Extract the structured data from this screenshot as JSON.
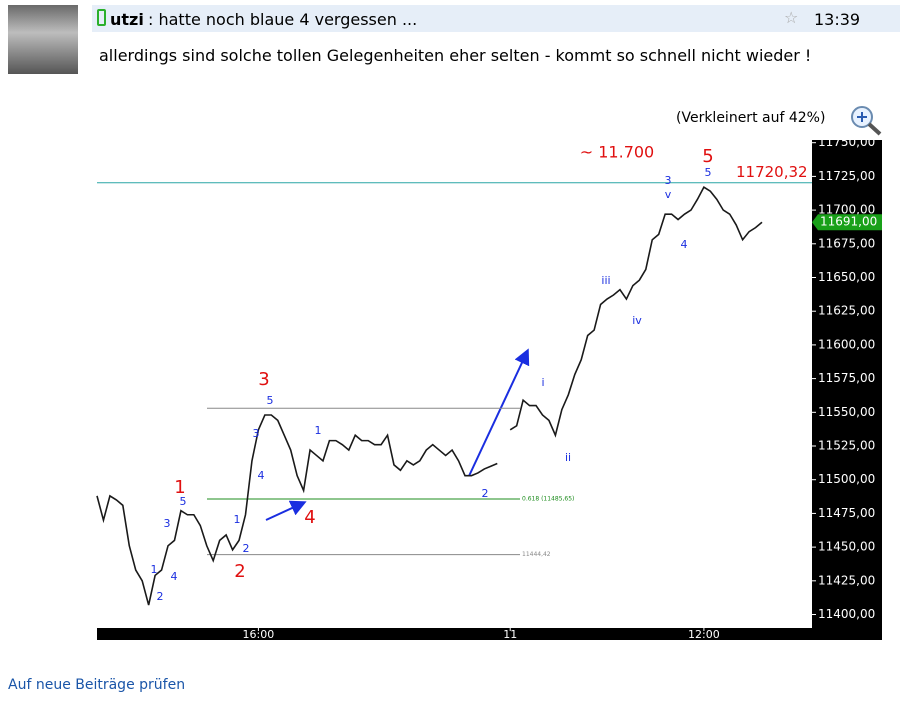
{
  "post": {
    "author": "utzi",
    "subject": ": hatte noch blaue 4 vergessen ...",
    "time": "13:39",
    "text": "allerdings sind solche tollen Gelegenheiten eher selten - kommt so schnell nicht wieder !",
    "zoom_note": "(Verkleinert auf 42%)"
  },
  "footer_link": "Auf neue Beiträge prüfen",
  "chart_data": {
    "type": "line",
    "categories": [
      null,
      null,
      null,
      null,
      null,
      null,
      null,
      null,
      null,
      null,
      null,
      null,
      null,
      null,
      null,
      null,
      null,
      null,
      null,
      null,
      null,
      null,
      null,
      null,
      null,
      "16:00",
      null,
      null,
      null,
      null,
      null,
      null,
      null,
      null,
      null,
      null,
      null,
      null,
      null,
      null,
      null,
      null,
      null,
      null,
      null,
      null,
      null,
      null,
      null,
      null,
      null,
      null,
      null,
      null,
      null,
      null,
      null,
      null,
      null,
      null,
      null,
      null,
      null,
      null,
      "11",
      null,
      null,
      null,
      null,
      null,
      null,
      null,
      null,
      null,
      null,
      null,
      null,
      null,
      null,
      null,
      null,
      null,
      null,
      null,
      null,
      null,
      null,
      null,
      null,
      null,
      null,
      null,
      null,
      null,
      "12:00",
      null,
      null,
      null,
      null,
      null,
      null,
      null,
      null,
      null
    ],
    "series": [
      {
        "color": "#1a1a1a",
        "values": [
          11488,
          11470,
          11488,
          11485,
          11481,
          11451,
          11433,
          11425,
          11407,
          11429,
          11433,
          11451,
          11455,
          11477,
          11474,
          11474,
          11466,
          11451,
          11440,
          11455,
          11459,
          11448,
          11455,
          11474,
          11514,
          11537,
          11548,
          11548,
          11544,
          11533,
          11522,
          11503,
          11492,
          11522,
          11518,
          11514,
          11529,
          11529,
          11526,
          11522,
          11533,
          11529,
          11529,
          11526,
          11526,
          11533,
          11511,
          11507,
          11514,
          11511,
          11514,
          11522,
          11526,
          11522,
          11518,
          11522,
          11514,
          11503,
          11503,
          11505,
          11508,
          11510,
          11512,
          null,
          11537,
          11540,
          11559,
          11555,
          11555,
          11548,
          11544,
          11533,
          11552,
          11563,
          11578,
          11589,
          11607,
          11611,
          11630,
          11634,
          11637,
          11641,
          11634,
          11644,
          11648,
          11656,
          11678,
          11682,
          11697,
          11697,
          11693,
          11697,
          11700,
          11708,
          11717,
          11714,
          11708,
          11700,
          11697,
          11689,
          11678,
          11684,
          11687,
          11691
        ]
      }
    ],
    "ylim": [
      11390,
      11752
    ],
    "yticks": [
      {
        "value": 11400,
        "label": "11400,00"
      },
      {
        "value": 11425,
        "label": "11425,00"
      },
      {
        "value": 11450,
        "label": "11450,00"
      },
      {
        "value": 11475,
        "label": "11475,00"
      },
      {
        "value": 11500,
        "label": "11500,00"
      },
      {
        "value": 11525,
        "label": "11525,00"
      },
      {
        "value": 11550,
        "label": "11550,00"
      },
      {
        "value": 11575,
        "label": "11575,00"
      },
      {
        "value": 11600,
        "label": "11600,00"
      },
      {
        "value": 11625,
        "label": "11625,00"
      },
      {
        "value": 11650,
        "label": "11650,00"
      },
      {
        "value": 11675,
        "label": "11675,00"
      },
      {
        "value": 11700,
        "label": "11700,00"
      },
      {
        "value": 11725,
        "label": "11725,00"
      },
      {
        "value": 11750,
        "label": "11750,00"
      }
    ],
    "last_price": {
      "value": 11691,
      "label": "11691,00"
    },
    "levels": [
      {
        "value": 11720.32,
        "label": "11720,32",
        "color": "#2aa6a6"
      },
      {
        "value": 11553,
        "color": "#888888"
      },
      {
        "value": 11485.65,
        "label": "0.618 (11485,65)",
        "color": "#1c8c1c"
      },
      {
        "value": 11444.42,
        "label": "11444,42",
        "color": "#888888"
      }
    ],
    "annotations": [
      {
        "text": "1",
        "color": "#e01010"
      },
      {
        "text": "2",
        "color": "#e01010"
      },
      {
        "text": "3",
        "color": "#e01010"
      },
      {
        "text": "4",
        "color": "#e01010"
      },
      {
        "text": "5",
        "color": "#e01010"
      },
      {
        "text": "~ 11.700",
        "color": "#e01010"
      },
      {
        "text": "5",
        "color": "#1a2ee0"
      },
      {
        "text": "3",
        "color": "#1a2ee0"
      },
      {
        "text": "4",
        "color": "#1a2ee0"
      },
      {
        "text": "1",
        "color": "#1a2ee0"
      },
      {
        "text": "2",
        "color": "#1a2ee0"
      },
      {
        "text": "1",
        "color": "#1a2ee0"
      },
      {
        "text": "2",
        "color": "#1a2ee0"
      },
      {
        "text": "4",
        "color": "#1a2ee0"
      },
      {
        "text": "3",
        "color": "#1a2ee0"
      },
      {
        "text": "5",
        "color": "#1a2ee0"
      },
      {
        "text": "1",
        "color": "#1a2ee0"
      },
      {
        "text": "2",
        "color": "#1a2ee0"
      },
      {
        "text": "i",
        "color": "#1a2ee0"
      },
      {
        "text": "ii",
        "color": "#1a2ee0"
      },
      {
        "text": "iii",
        "color": "#1a2ee0"
      },
      {
        "text": "iv",
        "color": "#1a2ee0"
      },
      {
        "text": "3",
        "color": "#1a2ee0"
      },
      {
        "text": "v",
        "color": "#1a2ee0"
      },
      {
        "text": "5",
        "color": "#1a2ee0"
      },
      {
        "text": "4",
        "color": "#1a2ee0"
      }
    ]
  }
}
